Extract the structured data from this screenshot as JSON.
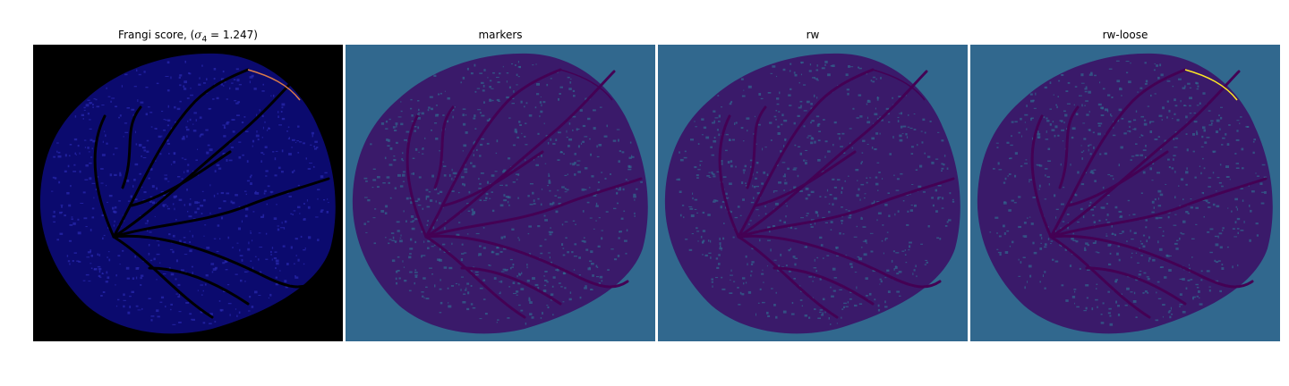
{
  "panels": [
    {
      "title_prefix": "Frangi score, (",
      "title_symbol": "σ",
      "title_subscript": "4",
      "title_suffix": " = 1.247)",
      "background": "#000000",
      "blob_fill": "#0b0a6e",
      "vessel_color": "#000000",
      "highlight_color": "#d97a4a"
    },
    {
      "title": "markers",
      "background": "#31688e",
      "blob_fill": "#3a1a6a",
      "vessel_color": "#440154",
      "highlight_color": "#440154"
    },
    {
      "title": "rw",
      "background": "#31688e",
      "blob_fill": "#3a1a6a",
      "vessel_color": "#440154",
      "highlight_color": "#440154"
    },
    {
      "title": "rw-loose",
      "background": "#31688e",
      "blob_fill": "#3a1a6a",
      "vessel_color": "#440154",
      "highlight_color": "#fde725"
    }
  ]
}
